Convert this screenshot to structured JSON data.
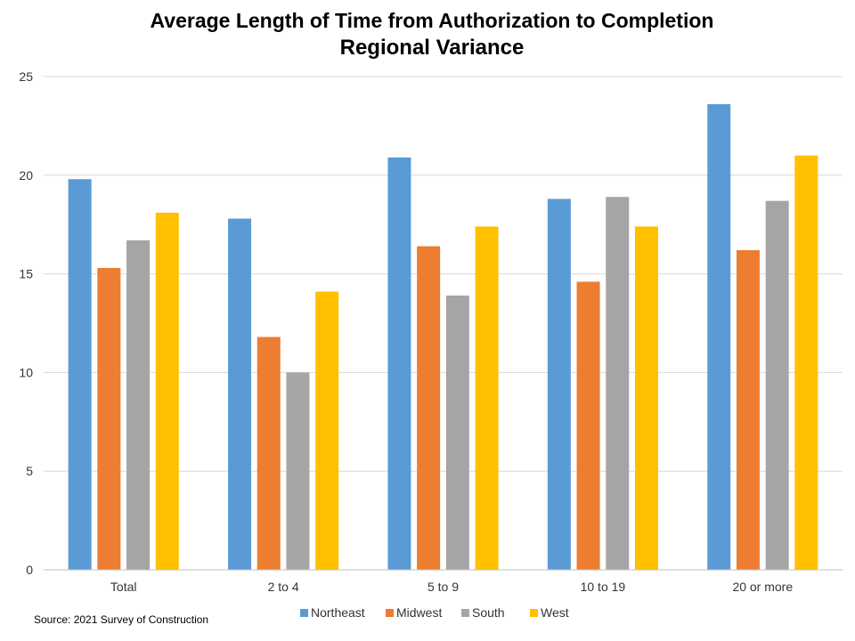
{
  "chart_data": {
    "type": "bar",
    "title": "Average Length of Time from Authorization to Completion",
    "subtitle": "Regional Variance",
    "categories": [
      "Total",
      "2 to 4",
      "5 to 9",
      "10 to 19",
      "20 or more"
    ],
    "series": [
      {
        "name": "Northeast",
        "color": "#5B9BD5",
        "values": [
          19.8,
          17.8,
          20.9,
          18.8,
          23.6
        ]
      },
      {
        "name": "Midwest",
        "color": "#ED7D31",
        "values": [
          15.3,
          11.8,
          16.4,
          14.6,
          16.2
        ]
      },
      {
        "name": "South",
        "color": "#A5A5A5",
        "values": [
          16.7,
          10.0,
          13.9,
          18.9,
          18.7
        ]
      },
      {
        "name": "West",
        "color": "#FFC000",
        "values": [
          18.1,
          14.1,
          17.4,
          17.4,
          21.0
        ]
      }
    ],
    "ylim": [
      0,
      25
    ],
    "yticks": [
      "0",
      "5",
      "10",
      "15",
      "20",
      "25"
    ],
    "grid": true,
    "legend_position": "bottom",
    "source": "Source: 2021 Survey of Construction"
  }
}
